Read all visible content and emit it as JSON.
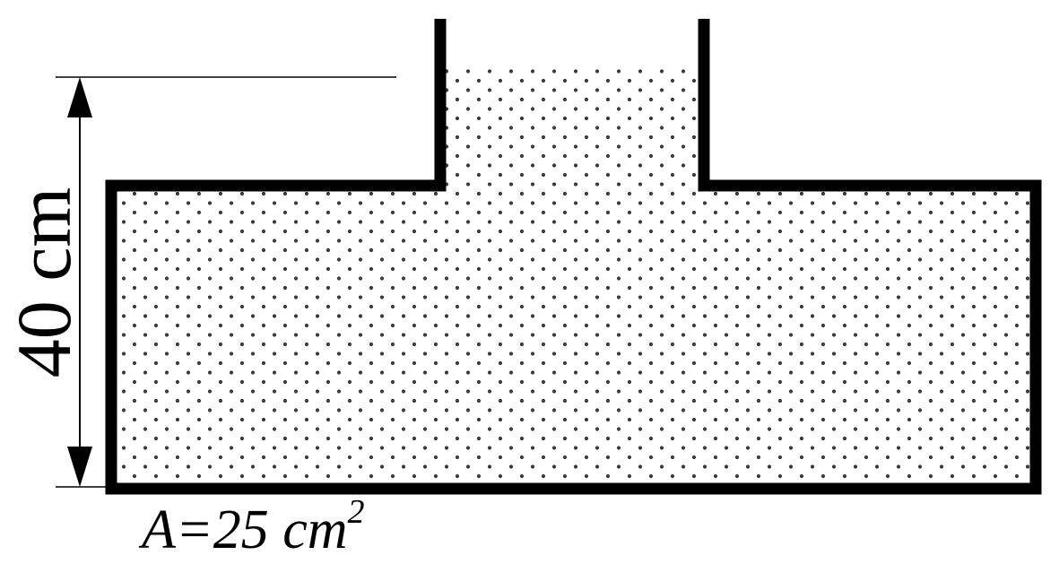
{
  "diagram": {
    "height_label": "40 cm",
    "area_label": "A=25 cm",
    "area_exponent": "2"
  },
  "colors": {
    "outline": "#000000",
    "fill_dots": "#3a3a3a",
    "background": "#ffffff"
  }
}
